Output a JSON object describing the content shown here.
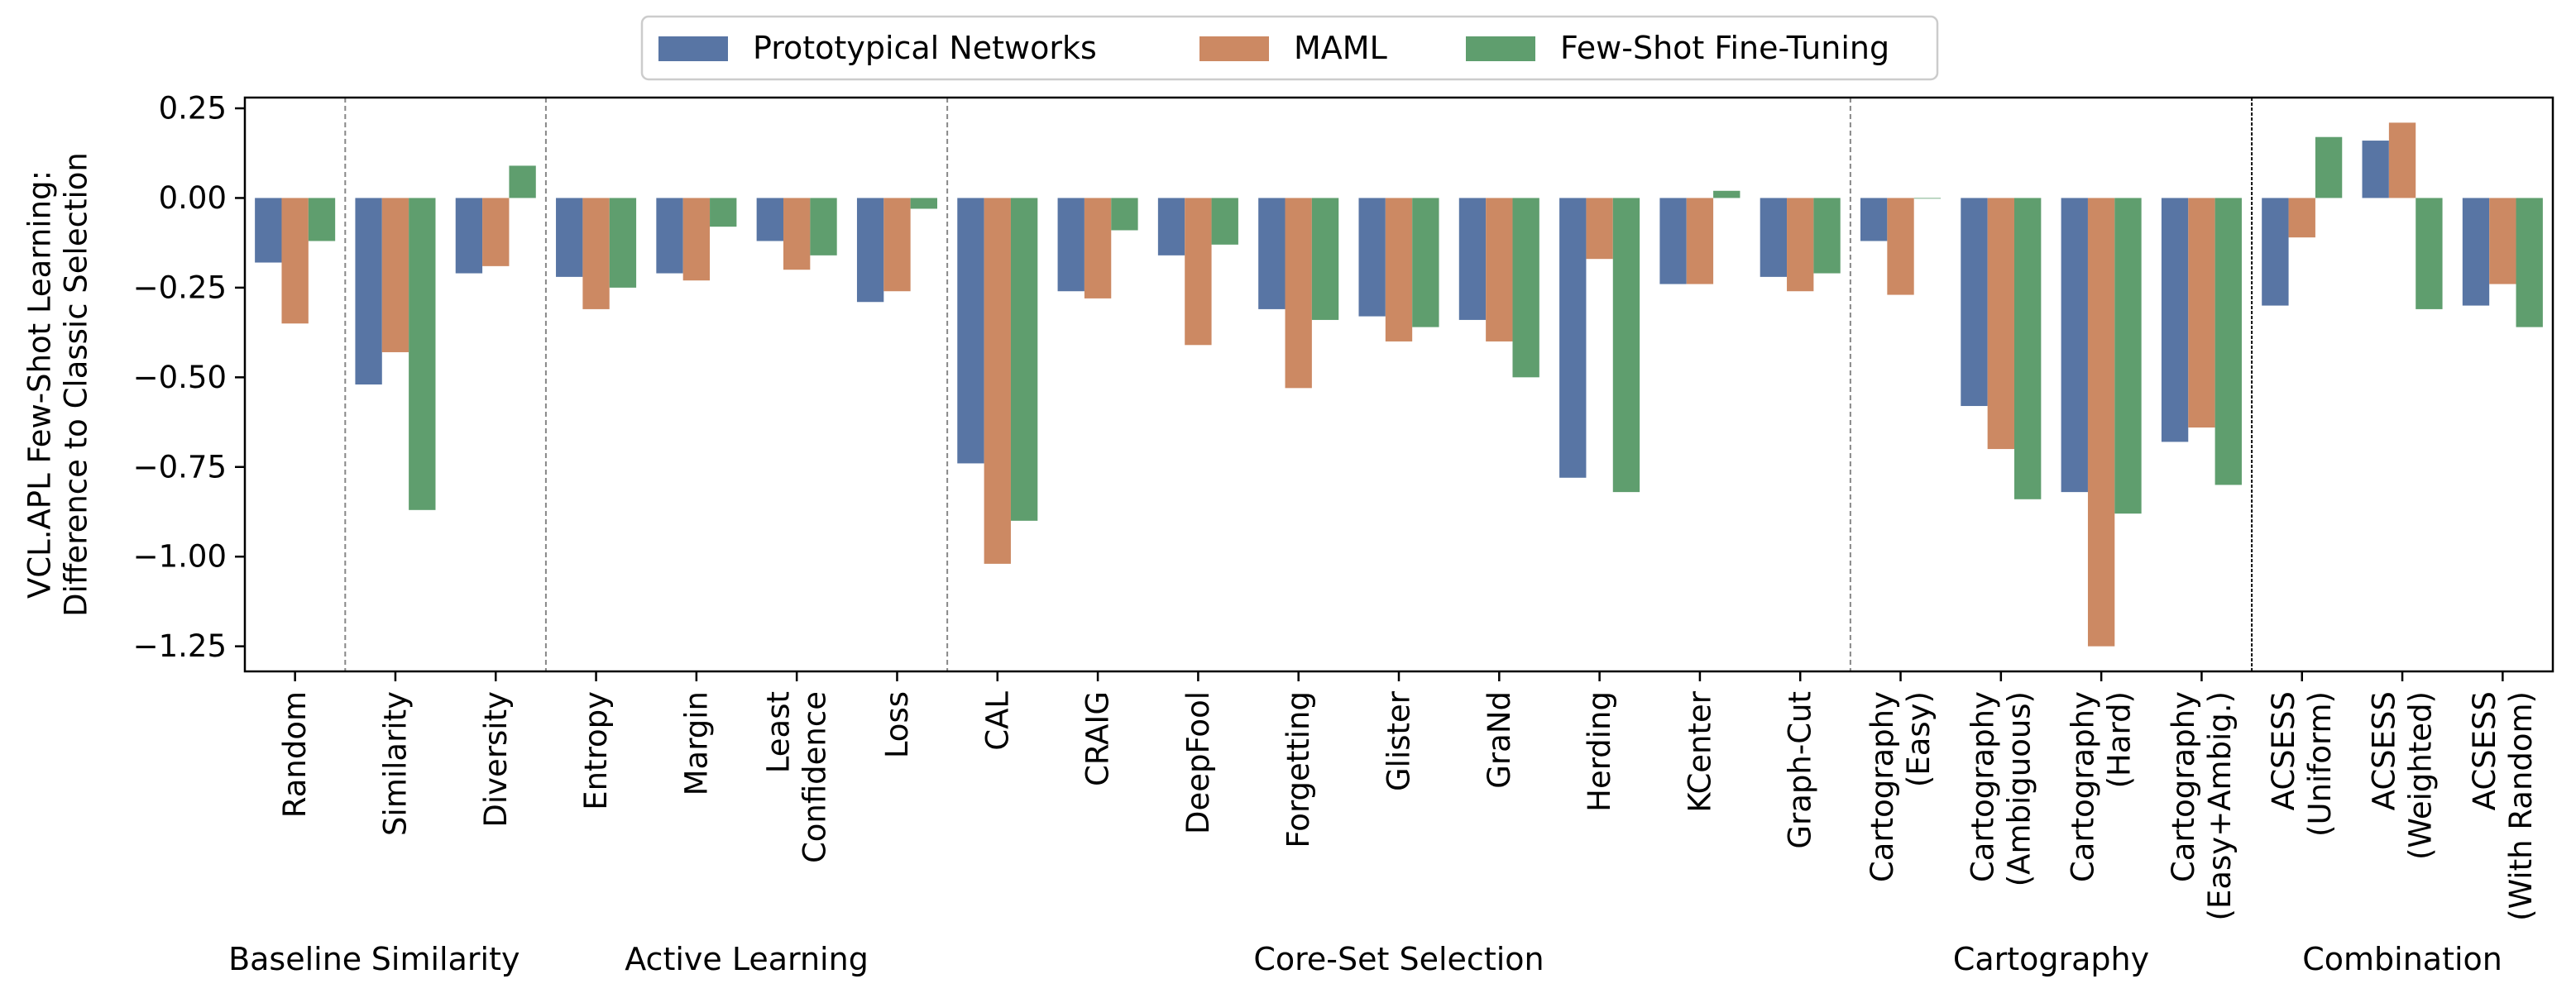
{
  "chart_data": {
    "type": "bar",
    "ylabel": "VCL.APL Few-Shot Learning:\nDifference to Classic Selection",
    "ylim": [
      -1.32,
      0.28
    ],
    "yticks": [
      0.25,
      0.0,
      -0.25,
      -0.5,
      -0.75,
      -1.0,
      -1.25
    ],
    "ytick_labels": [
      "0.25",
      "0.00",
      "−0.25",
      "−0.50",
      "−0.75",
      "−1.00",
      "−1.25"
    ],
    "legend_position": "top-center",
    "colors": {
      "proto": "#5875a4",
      "maml": "#cc8963",
      "fsft": "#5f9e6e"
    },
    "categories": [
      "Random",
      "Similarity",
      "Diversity",
      "Entropy",
      "Margin",
      "Least\nConfidence",
      "Loss",
      "CAL",
      "CRAIG",
      "DeepFool",
      "Forgetting",
      "Glister",
      "GraNd",
      "Herding",
      "KCenter",
      "Graph-Cut",
      "Cartography\n(Easy)",
      "Cartography\n(Ambiguous)",
      "Cartography\n(Hard)",
      "Cartography\n(Easy+Ambig.)",
      "ACSESS\n(Uniform)",
      "ACSESS\n(Weighted)",
      "ACSESS\n(With Random)"
    ],
    "series": [
      {
        "name": "Prototypical Networks",
        "color_key": "proto",
        "values": [
          -0.18,
          -0.52,
          -0.21,
          -0.22,
          -0.21,
          -0.12,
          -0.29,
          -0.74,
          -0.26,
          -0.16,
          -0.31,
          -0.33,
          -0.34,
          -0.78,
          -0.24,
          -0.22,
          -0.12,
          -0.58,
          -0.82,
          -0.68,
          -0.3,
          0.16,
          -0.3
        ]
      },
      {
        "name": "MAML",
        "color_key": "maml",
        "values": [
          -0.35,
          -0.43,
          -0.19,
          -0.31,
          -0.23,
          -0.2,
          -0.26,
          -1.02,
          -0.28,
          -0.41,
          -0.53,
          -0.4,
          -0.4,
          -0.17,
          -0.24,
          -0.26,
          -0.27,
          -0.7,
          -1.25,
          -0.64,
          -0.11,
          0.21,
          -0.24
        ]
      },
      {
        "name": "Few-Shot Fine-Tuning",
        "color_key": "fsft",
        "values": [
          -0.12,
          -0.87,
          0.09,
          -0.25,
          -0.08,
          -0.16,
          -0.03,
          -0.9,
          -0.09,
          -0.13,
          -0.34,
          -0.36,
          -0.5,
          -0.82,
          0.02,
          -0.21,
          0.0,
          -0.84,
          -0.88,
          -0.8,
          0.17,
          -0.31,
          -0.36
        ]
      }
    ],
    "groups": [
      {
        "label": "Baseline",
        "start": 0,
        "end": 0,
        "separator_after": "dashed"
      },
      {
        "label": "Similarity",
        "start": 1,
        "end": 2,
        "separator_after": "dashed"
      },
      {
        "label": "Active Learning",
        "start": 3,
        "end": 6,
        "separator_after": "dashed"
      },
      {
        "label": "Core-Set Selection",
        "start": 7,
        "end": 15,
        "separator_after": "dashed"
      },
      {
        "label": "Cartography",
        "start": 16,
        "end": 19,
        "separator_after": "solid"
      },
      {
        "label": "Combination",
        "start": 20,
        "end": 22,
        "separator_after": "none"
      }
    ]
  }
}
